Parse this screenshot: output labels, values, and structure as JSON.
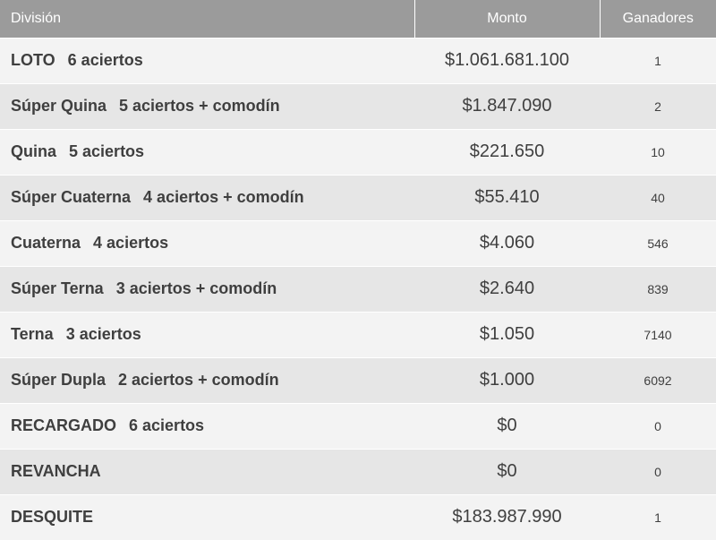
{
  "table": {
    "headers": {
      "division": "División",
      "monto": "Monto",
      "ganadores": "Ganadores"
    },
    "rows": [
      {
        "name": "LOTO",
        "aciertos": "6 aciertos",
        "monto": "$1.061.681.100",
        "ganadores": "1"
      },
      {
        "name": "Súper Quina",
        "aciertos": "5 aciertos + comodín",
        "monto": "$1.847.090",
        "ganadores": "2"
      },
      {
        "name": "Quina",
        "aciertos": "5 aciertos",
        "monto": "$221.650",
        "ganadores": "10"
      },
      {
        "name": "Súper Cuaterna",
        "aciertos": "4 aciertos + comodín",
        "monto": "$55.410",
        "ganadores": "40"
      },
      {
        "name": "Cuaterna",
        "aciertos": "4 aciertos",
        "monto": "$4.060",
        "ganadores": "546"
      },
      {
        "name": "Súper Terna",
        "aciertos": "3 aciertos + comodín",
        "monto": "$2.640",
        "ganadores": "839"
      },
      {
        "name": "Terna",
        "aciertos": "3 aciertos",
        "monto": "$1.050",
        "ganadores": "7140"
      },
      {
        "name": "Súper Dupla",
        "aciertos": "2 aciertos + comodín",
        "monto": "$1.000",
        "ganadores": "6092"
      },
      {
        "name": "RECARGADO",
        "aciertos": "6 aciertos",
        "monto": "$0",
        "ganadores": "0"
      },
      {
        "name": "REVANCHA",
        "aciertos": "",
        "monto": "$0",
        "ganadores": "0"
      },
      {
        "name": "DESQUITE",
        "aciertos": "",
        "monto": "$183.987.990",
        "ganadores": "1"
      }
    ]
  }
}
